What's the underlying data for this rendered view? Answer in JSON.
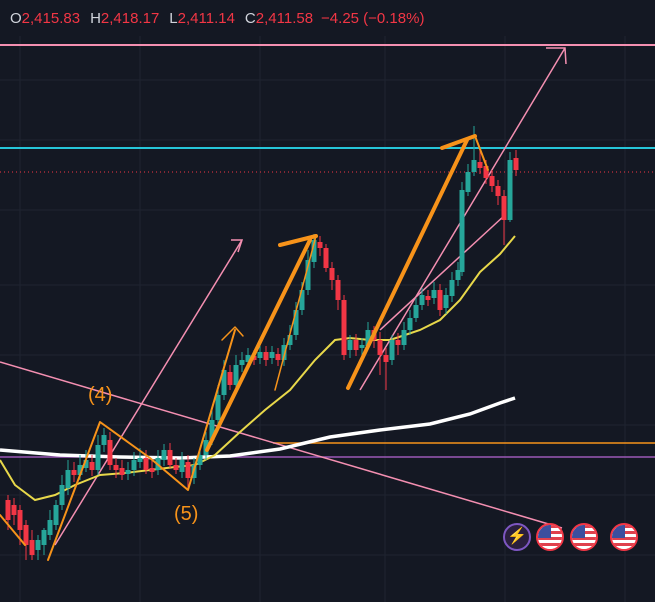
{
  "ohlc": {
    "o_label": "O",
    "o_value": "2,415.83",
    "h_label": "H",
    "h_value": "2,418.17",
    "l_label": "L",
    "l_value": "2,411.14",
    "c_label": "C",
    "c_value": "2,411.58",
    "change": "−4.25 (−0.18%)"
  },
  "labels": {
    "wave4": "(4)",
    "wave5": "(5)"
  },
  "colors": {
    "background": "#141823",
    "grid": "#1f2430",
    "up": "#26a69a",
    "down": "#f23645",
    "pink": "#f48fb1",
    "cyan": "#26c6da",
    "orange": "#f7931a",
    "yellow": "#e8d84a",
    "white": "#ffffff",
    "purple": "#8e44ad"
  },
  "icons": [
    "lightning-icon",
    "us-flag-icon",
    "us-flag-icon",
    "us-flag-icon"
  ]
}
